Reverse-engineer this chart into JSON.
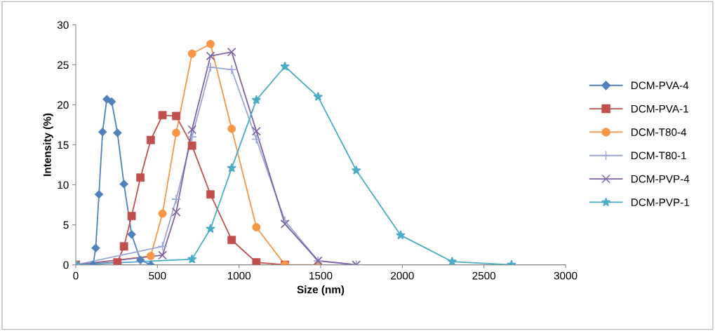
{
  "chart_data": {
    "type": "line",
    "xlabel": "Size (nm)",
    "ylabel": "Intensity (%)",
    "xlim": [
      0,
      3000
    ],
    "xticks": [
      0,
      500,
      1000,
      1500,
      2000,
      2500,
      3000
    ],
    "ylim": [
      0,
      30
    ],
    "yticks": [
      0,
      5,
      10,
      15,
      20,
      25,
      30
    ],
    "grid": false,
    "legend": "right",
    "line_style": "solid",
    "series": [
      {
        "name": "DCM-PVA-4",
        "color": "#4f81bd",
        "marker": "diamond",
        "x": [
          0,
          106,
          122,
          142,
          164,
          190,
          220,
          255,
          295,
          342,
          396,
          459
        ],
        "values": [
          0,
          0,
          2.1,
          8.8,
          16.6,
          20.7,
          20.4,
          16.5,
          10.1,
          3.8,
          0.6,
          0
        ]
      },
      {
        "name": "DCM-PVA-1",
        "color": "#c0504d",
        "marker": "square",
        "x": [
          0,
          255,
          295,
          342,
          396,
          459,
          531,
          615,
          712,
          825,
          955,
          1106,
          1281
        ],
        "values": [
          0,
          0.3,
          2.3,
          6.1,
          10.9,
          15.6,
          18.7,
          18.6,
          14.9,
          8.8,
          3.1,
          0.3,
          0
        ]
      },
      {
        "name": "DCM-T80-4",
        "color": "#f79646",
        "marker": "circle",
        "x": [
          0,
          459,
          531,
          615,
          712,
          825,
          955,
          1106,
          1281,
          1484
        ],
        "values": [
          0,
          1.1,
          6.4,
          16.5,
          26.4,
          27.6,
          17.0,
          4.7,
          0,
          0
        ]
      },
      {
        "name": "DCM-T80-1",
        "color": "#9aa6d8",
        "marker": "plus",
        "x": [
          0,
          531,
          615,
          712,
          825,
          955,
          1106,
          1281,
          1484,
          1718
        ],
        "values": [
          0,
          2.3,
          8.2,
          16.0,
          24.7,
          24.4,
          15.7,
          5.5,
          0.5,
          0
        ]
      },
      {
        "name": "DCM-PVP-4",
        "color": "#8064a2",
        "marker": "cross",
        "x": [
          0,
          531,
          615,
          712,
          825,
          955,
          1106,
          1281,
          1484,
          1718
        ],
        "values": [
          0,
          1.2,
          6.6,
          16.9,
          26.1,
          26.6,
          16.7,
          5.1,
          0.5,
          0
        ]
      },
      {
        "name": "DCM-PVP-1",
        "color": "#4bacc6",
        "marker": "star",
        "x": [
          0,
          712,
          825,
          955,
          1106,
          1281,
          1484,
          1718,
          1990,
          2305,
          2669
        ],
        "values": [
          0,
          0.7,
          4.5,
          12.1,
          20.6,
          24.8,
          21.0,
          11.8,
          3.7,
          0.4,
          0
        ]
      }
    ]
  }
}
